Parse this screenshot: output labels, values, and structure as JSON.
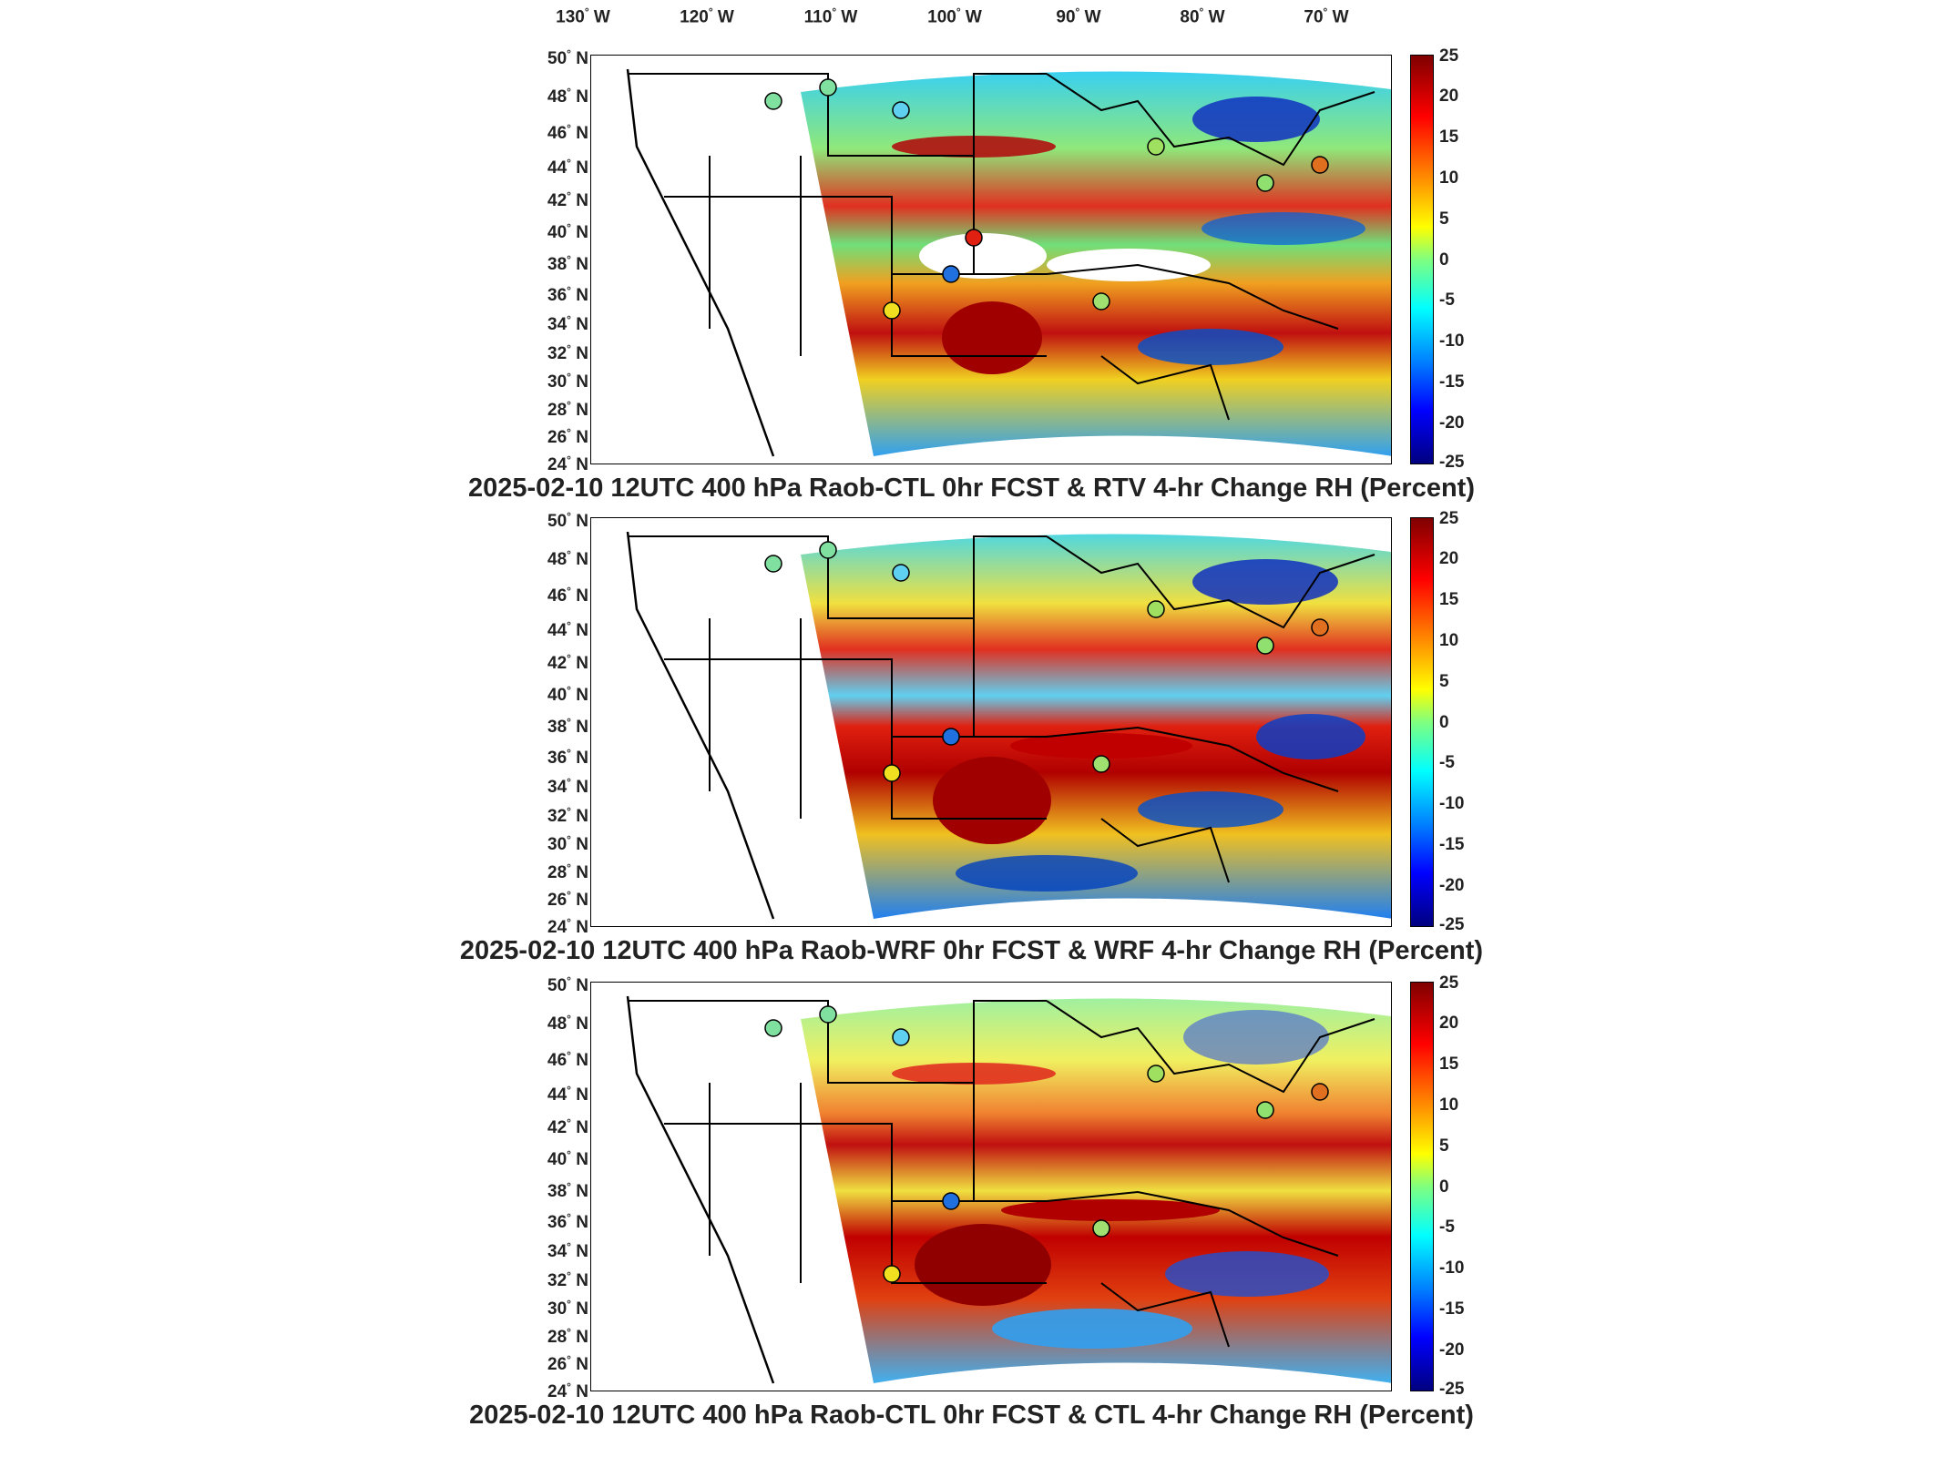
{
  "longitude_labels": [
    "130",
    "120",
    "110",
    "100",
    "90",
    "80",
    "70"
  ],
  "lon_suffix": "W",
  "lat_suffix": "N",
  "latitude_labels": [
    "50",
    "48",
    "46",
    "44",
    "42",
    "40",
    "38",
    "36",
    "34",
    "32",
    "30",
    "28",
    "26",
    "24"
  ],
  "colorbar_ticks": [
    "25",
    "20",
    "15",
    "10",
    "5",
    "0",
    "-5",
    "-10",
    "-15",
    "-20",
    "-25"
  ],
  "panels": [
    {
      "title": "2025-02-10 12UTC 400 hPa Raob-CTL 0hr FCST & RTV 4-hr Change RH (Percent)"
    },
    {
      "title": "2025-02-10 12UTC 400 hPa Raob-WRF 0hr FCST & WRF 4-hr Change RH (Percent)"
    },
    {
      "title": "2025-02-10 12UTC 400 hPa Raob-CTL 0hr FCST & CTL 4-hr Change RH (Percent)"
    }
  ],
  "colors": {
    "dark_red": "#7f0000",
    "red": "#ff0000",
    "orange": "#ff8c00",
    "yellow": "#ffff00",
    "green": "#7fff7f",
    "cyan": "#00ffff",
    "blue": "#0080ff",
    "dark_blue": "#00007f"
  }
}
